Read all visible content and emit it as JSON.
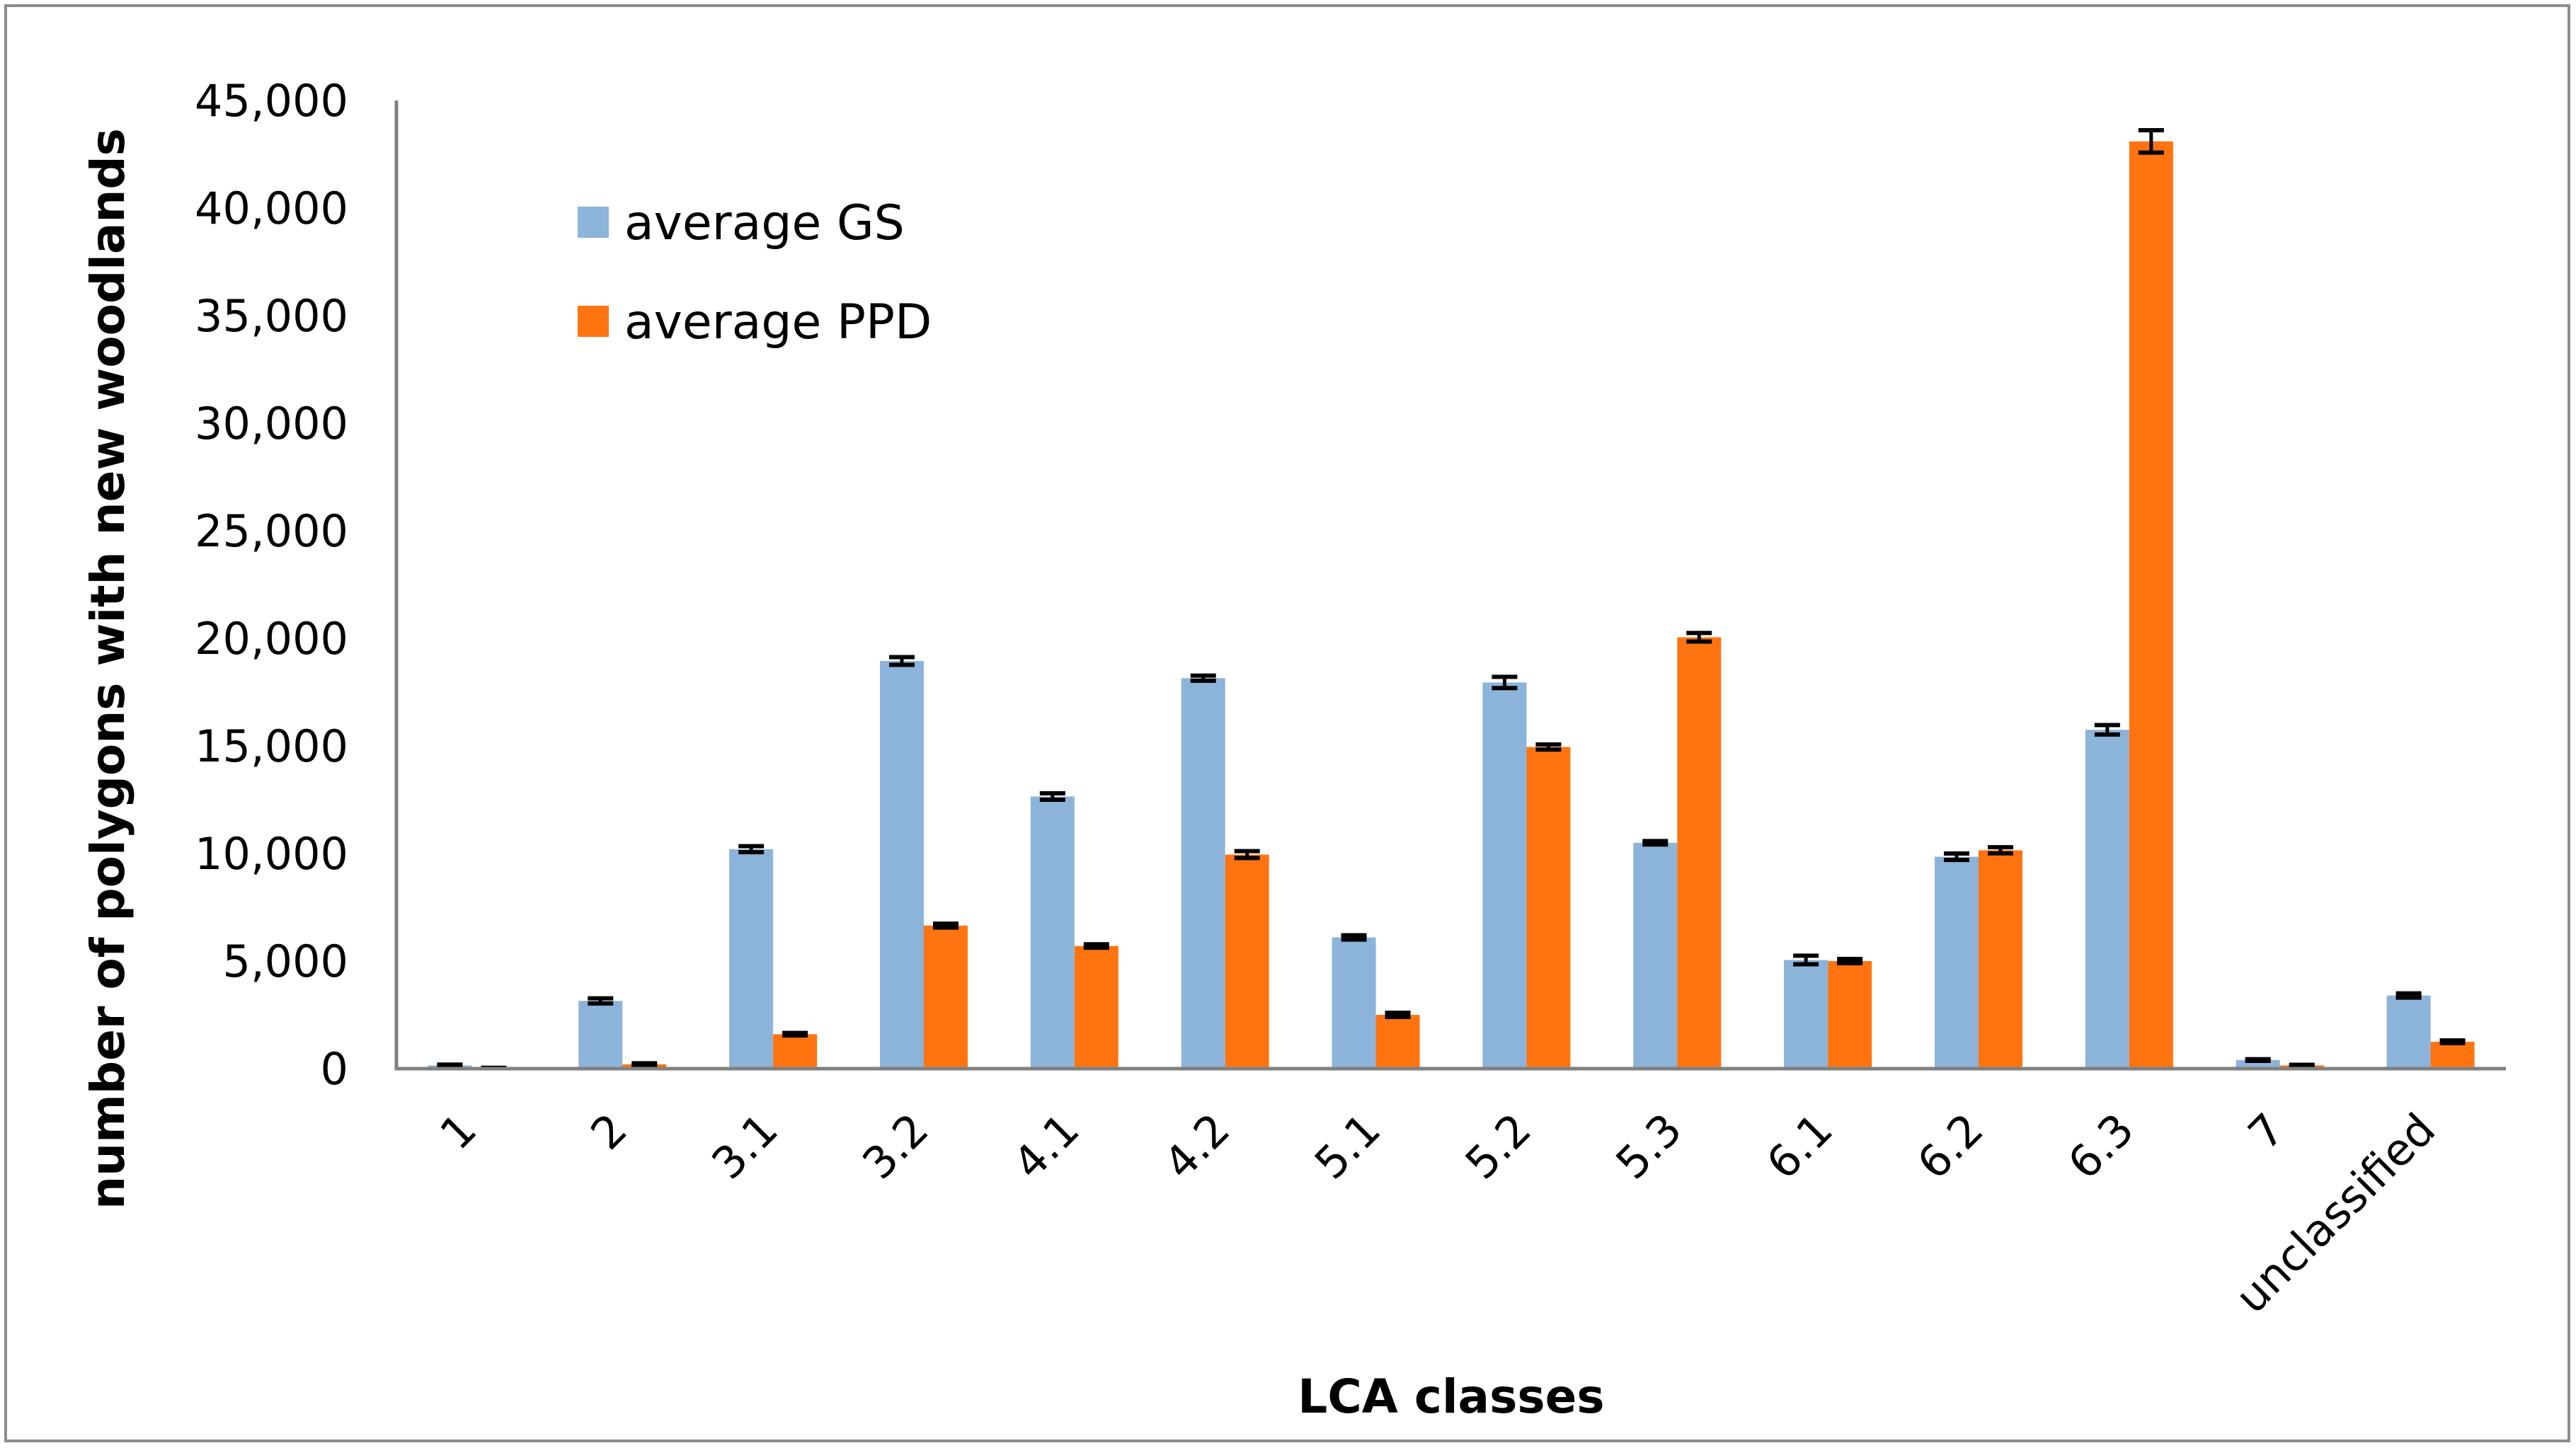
{
  "chart_data": {
    "type": "bar",
    "xlabel": "LCA classes",
    "ylabel": "number of polygons with new woodlands",
    "ylim": [
      0,
      45000
    ],
    "ytick_step": 5000,
    "ytick_labels": [
      "0",
      "5,000",
      "10,000",
      "15,000",
      "20,000",
      "25,000",
      "30,000",
      "35,000",
      "40,000",
      "45,000"
    ],
    "categories": [
      "1",
      "2",
      "3.1",
      "3.2",
      "4.1",
      "4.2",
      "5.1",
      "5.2",
      "5.3",
      "6.1",
      "6.2",
      "6.3",
      "7",
      "unclassified"
    ],
    "legend_position": "top-left",
    "grid": false,
    "series": [
      {
        "name": "average GS",
        "color": "#8cb4da",
        "values": [
          150,
          3150,
          10200,
          18950,
          12650,
          18150,
          6100,
          17950,
          10500,
          5050,
          9850,
          15750,
          400,
          3400
        ],
        "errors": [
          40,
          120,
          140,
          180,
          150,
          120,
          100,
          260,
          80,
          200,
          150,
          220,
          40,
          100
        ]
      },
      {
        "name": "average PPD",
        "color": "#ff7410",
        "values": [
          30,
          200,
          1600,
          6650,
          5700,
          9950,
          2500,
          14950,
          20050,
          5000,
          10150,
          43100,
          150,
          1250
        ],
        "errors": [
          10,
          50,
          60,
          90,
          80,
          160,
          100,
          120,
          200,
          100,
          140,
          520,
          30,
          60
        ]
      }
    ]
  }
}
